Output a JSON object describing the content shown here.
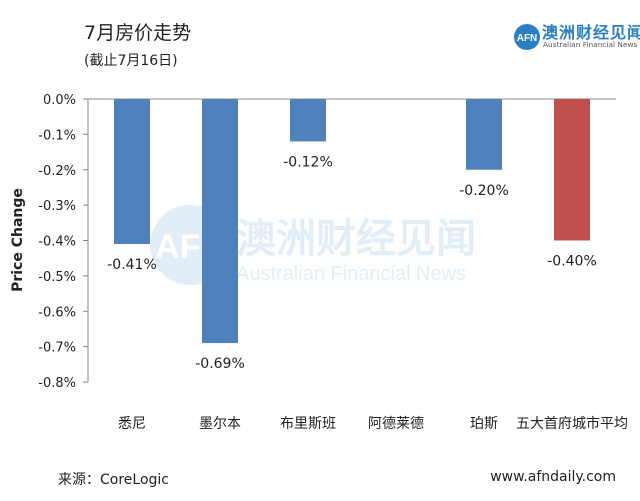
{
  "header": {
    "title": "7月房价走势",
    "subtitle": "(截止7月16日)"
  },
  "logo": {
    "mark": "AFN",
    "name_cn": "澳洲财经见闻",
    "name_en": "Australian Financial News"
  },
  "watermark": {
    "mark": "AFN",
    "name_cn": "澳洲财经见闻",
    "name_en": "Australian Financial News"
  },
  "footer": {
    "source": "来源：CoreLogic",
    "website": "www.afndaily.com"
  },
  "colors": {
    "bar": "#4f81bd",
    "highlight_bar": "#c0504d",
    "brand": "#2a7fc4"
  },
  "chart_data": {
    "type": "bar",
    "title": "7月房价走势",
    "subtitle": "(截止7月16日)",
    "xlabel": "",
    "ylabel": "Price Change",
    "ylim": [
      -0.8,
      0.0
    ],
    "y_ticks": [
      0.0,
      -0.1,
      -0.2,
      -0.3,
      -0.4,
      -0.5,
      -0.6,
      -0.7,
      -0.8
    ],
    "y_tick_labels": [
      "0.0%",
      "-0.1%",
      "-0.2%",
      "-0.3%",
      "-0.4%",
      "-0.5%",
      "-0.6%",
      "-0.7%",
      "-0.8%"
    ],
    "categories": [
      "悉尼",
      "墨尔本",
      "布里斯班",
      "阿德莱德",
      "珀斯",
      "五大首府城市平均"
    ],
    "values": [
      -0.41,
      -0.69,
      -0.12,
      null,
      -0.2,
      -0.4
    ],
    "data_labels": [
      "-0.41%",
      "-0.69%",
      "-0.12%",
      "",
      "-0.20%",
      "-0.40%"
    ],
    "highlight_index": 5,
    "grid": false,
    "legend": "none"
  }
}
